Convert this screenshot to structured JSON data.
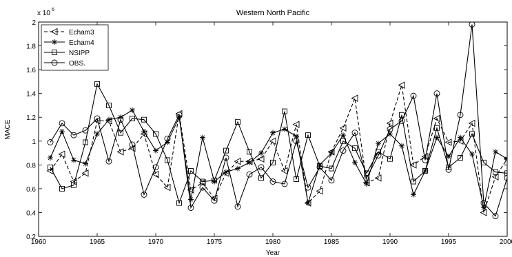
{
  "chart_data": {
    "type": "line",
    "title": "Western North Pacific",
    "xlabel": "Year",
    "ylabel": "MACE",
    "y_exponent_label": "x 10",
    "y_exponent_power": "6",
    "xlim": [
      1960,
      2000
    ],
    "ylim": [
      0.2,
      2.0
    ],
    "xticks": [
      1960,
      1965,
      1970,
      1975,
      1980,
      1985,
      1990,
      1995,
      2000
    ],
    "xtick_labels": [
      "1960",
      "1965",
      "1970",
      "1975",
      "1980",
      "1985",
      "1990",
      "1995",
      "2000"
    ],
    "yticks": [
      0.2,
      0.4,
      0.6,
      0.8,
      1.0,
      1.2,
      1.4,
      1.6,
      1.8,
      2.0
    ],
    "ytick_labels": [
      "0.2",
      "0.4",
      "0.6",
      "0.8",
      "1",
      "1.2",
      "1.4",
      "1.6",
      "1.8",
      "2"
    ],
    "grid": false,
    "legend_position": "top-left",
    "x": [
      1961,
      1962,
      1963,
      1964,
      1965,
      1966,
      1967,
      1968,
      1969,
      1970,
      1971,
      1972,
      1973,
      1974,
      1975,
      1976,
      1977,
      1978,
      1979,
      1980,
      1981,
      1982,
      1983,
      1984,
      1985,
      1986,
      1987,
      1988,
      1989,
      1990,
      1991,
      1992,
      1993,
      1994,
      1995,
      1996,
      1997,
      1998,
      1999,
      2000
    ],
    "series": [
      {
        "name": "Echam3",
        "marker": "triangle-left",
        "dash": "dashed",
        "values": [
          0.75,
          0.89,
          0.66,
          0.73,
          1.17,
          1.17,
          0.91,
          0.94,
          1.06,
          0.72,
          0.61,
          1.23,
          0.59,
          0.65,
          0.52,
          0.73,
          0.83,
          0.83,
          0.85,
          1.0,
          0.75,
          1.14,
          0.48,
          0.58,
          0.91,
          1.11,
          1.36,
          0.65,
          0.69,
          1.15,
          1.47,
          0.8,
          0.87,
          1.19,
          0.99,
          1.0,
          1.15,
          0.4,
          0.7,
          0.85
        ]
      },
      {
        "name": "Echam4",
        "marker": "asterisk",
        "dash": "solid",
        "values": [
          0.86,
          1.08,
          0.84,
          0.81,
          1.06,
          1.18,
          1.2,
          1.26,
          1.08,
          0.92,
          0.99,
          1.2,
          0.51,
          1.03,
          0.66,
          0.74,
          0.77,
          0.82,
          0.9,
          1.07,
          1.1,
          1.04,
          0.48,
          0.8,
          0.9,
          1.05,
          0.82,
          0.64,
          0.98,
          1.06,
          0.96,
          0.55,
          0.75,
          1.03,
          0.87,
          1.03,
          0.89,
          0.44,
          0.91,
          0.85
        ]
      },
      {
        "name": "NSIPP",
        "marker": "square",
        "dash": "solid",
        "values": [
          0.78,
          0.6,
          0.63,
          0.99,
          1.48,
          1.3,
          1.07,
          1.19,
          1.18,
          1.06,
          0.84,
          0.48,
          0.75,
          0.66,
          0.67,
          0.92,
          1.16,
          0.91,
          0.69,
          0.82,
          1.25,
          0.68,
          1.05,
          0.79,
          0.77,
          1.0,
          0.94,
          0.73,
          0.91,
          0.85,
          1.22,
          0.66,
          0.75,
          1.11,
          0.78,
          0.86,
          1.06,
          0.82,
          0.74,
          0.73
        ]
      },
      {
        "name": "OBS.",
        "marker": "circle",
        "dash": "solid",
        "values": [
          0.99,
          1.15,
          1.05,
          1.09,
          1.19,
          0.83,
          1.18,
          0.97,
          0.55,
          0.78,
          1.02,
          1.22,
          0.44,
          0.61,
          0.5,
          0.86,
          0.45,
          0.72,
          0.78,
          0.66,
          0.64,
          1.0,
          0.61,
          0.78,
          0.67,
          0.92,
          1.07,
          0.69,
          0.88,
          1.1,
          1.17,
          1.38,
          0.84,
          1.4,
          0.76,
          1.22,
          1.98,
          0.48,
          0.37,
          0.69
        ]
      }
    ]
  }
}
